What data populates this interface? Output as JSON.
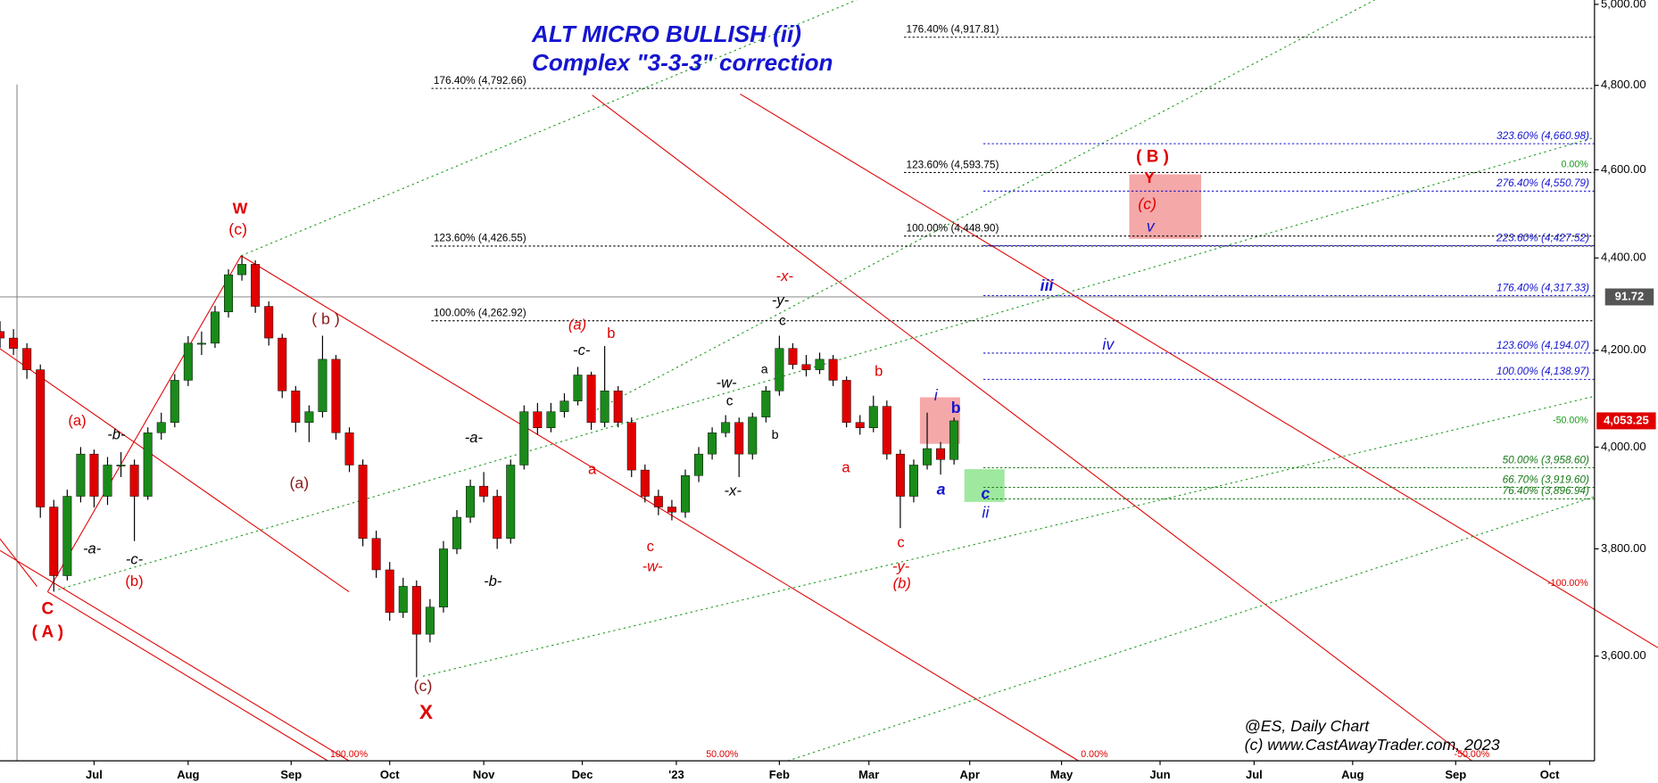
{
  "chart_data": {
    "type": "candlestick",
    "title": "ALT MICRO BULLISH (ii)",
    "subtitle": "Complex \"3-3-3\" correction",
    "log_scale": true,
    "up_color": "#1a8a1a",
    "down_color": "#e00000",
    "x": [
      0,
      3,
      6,
      9,
      12,
      15,
      18,
      21,
      24,
      27,
      30,
      33,
      36,
      39,
      42,
      45,
      48,
      51,
      54,
      57,
      60,
      63,
      66,
      69,
      72,
      75,
      78,
      81,
      84,
      87,
      90,
      93,
      96,
      99,
      102,
      105,
      108,
      111,
      114,
      117,
      120,
      123,
      126,
      129,
      132,
      135,
      138,
      141,
      144,
      147,
      150,
      153,
      156,
      159,
      162,
      165,
      168,
      171,
      174,
      177,
      180,
      183,
      186,
      189,
      192,
      195,
      198,
      201,
      204,
      207,
      210,
      213
    ],
    "open": [
      4240,
      4226,
      4204,
      4159,
      3881,
      3749,
      3902,
      3986,
      3902,
      3964,
      3964,
      3902,
      4029,
      4050,
      4137,
      4215,
      4215,
      4282,
      4363,
      4386,
      4294,
      4226,
      4115,
      4050,
      4072,
      4181,
      4029,
      3964,
      3820,
      3760,
      3680,
      3729,
      3640,
      3690,
      3800,
      3861,
      3922,
      3902,
      3820,
      3964,
      4072,
      4039,
      4072,
      4094,
      4148,
      4050,
      4115,
      4050,
      3954,
      3902,
      3881,
      3871,
      3943,
      3986,
      4029,
      4050,
      3986,
      4061,
      4115,
      4204,
      4170,
      4159,
      4181,
      4137,
      4050,
      4039,
      4083,
      3986,
      3902,
      3964,
      3997,
      3975
    ],
    "high": [
      4262,
      4245,
      4215,
      4170,
      3895,
      3915,
      4000,
      3995,
      3980,
      3990,
      3975,
      4040,
      4070,
      4150,
      4230,
      4240,
      4295,
      4375,
      4405,
      4395,
      4305,
      4235,
      4125,
      4085,
      4231,
      4190,
      4040,
      3975,
      3835,
      3775,
      3745,
      3740,
      3705,
      3815,
      3875,
      3935,
      3950,
      3915,
      3975,
      4085,
      4090,
      4090,
      4110,
      4165,
      4155,
      4209,
      4125,
      4060,
      3965,
      3915,
      3895,
      3955,
      4000,
      4040,
      4065,
      4060,
      4070,
      4125,
      4231,
      4215,
      4190,
      4195,
      4190,
      4145,
      4065,
      4105,
      4095,
      3995,
      3975,
      4070,
      4010,
      4060
    ],
    "low": [
      4205,
      4190,
      4140,
      3860,
      3719,
      3740,
      3890,
      3880,
      3885,
      3940,
      3815,
      3895,
      4015,
      4040,
      4125,
      4190,
      4205,
      4270,
      4350,
      4280,
      4210,
      4100,
      4030,
      4010,
      4060,
      4015,
      3950,
      3805,
      3745,
      3665,
      3670,
      3562,
      3625,
      3680,
      3790,
      3850,
      3890,
      3800,
      3810,
      3955,
      4025,
      4030,
      4060,
      4085,
      4035,
      4040,
      4040,
      3940,
      3890,
      3865,
      3855,
      3860,
      3930,
      3975,
      4020,
      3940,
      3975,
      4050,
      4105,
      4160,
      4145,
      4150,
      4125,
      4040,
      4025,
      4030,
      3975,
      3840,
      3890,
      3955,
      3945,
      3965
    ],
    "close": [
      4226,
      4204,
      4159,
      3881,
      3749,
      3902,
      3986,
      3902,
      3964,
      3964,
      3902,
      4029,
      4050,
      4137,
      4215,
      4215,
      4282,
      4363,
      4386,
      4294,
      4226,
      4115,
      4050,
      4072,
      4181,
      4029,
      3964,
      3820,
      3760,
      3680,
      3729,
      3640,
      3690,
      3800,
      3861,
      3922,
      3902,
      3820,
      3964,
      4072,
      4039,
      4072,
      4094,
      4148,
      4050,
      4115,
      4050,
      3954,
      3902,
      3881,
      3871,
      3943,
      3986,
      4029,
      4050,
      3986,
      4061,
      4115,
      4204,
      4170,
      4159,
      4181,
      4137,
      4050,
      4039,
      4083,
      3986,
      3902,
      3964,
      3997,
      3975,
      4053.25
    ],
    "last_price": {
      "value": 4053.25,
      "label": "4,053.25"
    },
    "cursor_label": "91.72",
    "xlim": [
      0,
      356
    ],
    "xticks": [
      {
        "value": 21,
        "label": "Jul"
      },
      {
        "value": 42,
        "label": "Aug"
      },
      {
        "value": 65,
        "label": "Sep"
      },
      {
        "value": 87,
        "label": "Oct"
      },
      {
        "value": 108,
        "label": "Nov"
      },
      {
        "value": 130,
        "label": "Dec"
      },
      {
        "value": 151,
        "label": "'23"
      },
      {
        "value": 174,
        "label": "Feb"
      },
      {
        "value": 194,
        "label": "Mar"
      },
      {
        "value": 216.5,
        "label": "Apr"
      },
      {
        "value": 237,
        "label": "May"
      },
      {
        "value": 259,
        "label": "Jun"
      },
      {
        "value": 280,
        "label": "Jul"
      },
      {
        "value": 302,
        "label": "Aug"
      },
      {
        "value": 325,
        "label": "Sep"
      },
      {
        "value": 346,
        "label": "Oct"
      }
    ],
    "ylim": [
      3415,
      5011
    ],
    "yticks": [
      {
        "value": 3600,
        "label": "3,600.00"
      },
      {
        "value": 3800,
        "label": "3,800.00"
      },
      {
        "value": 4000,
        "label": "4,000.00"
      },
      {
        "value": 4200,
        "label": "4,200.00"
      },
      {
        "value": 4400,
        "label": "4,400.00"
      },
      {
        "value": 4600,
        "label": "4,600.00"
      },
      {
        "value": 4800,
        "label": "4,800.00"
      },
      {
        "value": 5000,
        "label": "5,000.00"
      }
    ],
    "levels": [
      {
        "label": "176.40% (4,792.66)",
        "value": 4792.66,
        "color": "#000000"
      },
      {
        "label": "123.60% (4,426.55)",
        "value": 4426.55,
        "color": "#000000"
      },
      {
        "label": "100.00% (4,262.92)",
        "value": 4262.92,
        "color": "#000000"
      },
      {
        "label": "176.40% (4,917.81)",
        "value": 4917.81,
        "color": "#000000"
      },
      {
        "label": "123.60% (4,593.75)",
        "value": 4593.75,
        "color": "#000000"
      },
      {
        "label": "100.00% (4,448.90)",
        "value": 4448.9,
        "color": "#000000"
      },
      {
        "label": "323.60% (4,660.98)",
        "value": 4660.98,
        "color": "#1515d0"
      },
      {
        "label": "276.40% (4,550.79)",
        "value": 4550.79,
        "color": "#1515d0"
      },
      {
        "label": "223.60% (4,427.52)",
        "value": 4427.52,
        "color": "#1515d0"
      },
      {
        "label": "176.40% (4,317.33)",
        "value": 4317.33,
        "color": "#1515d0"
      },
      {
        "label": "123.60% (4,194.07)",
        "value": 4194.07,
        "color": "#1515d0"
      },
      {
        "label": "100.00% (4,138.97)",
        "value": 4138.97,
        "color": "#1515d0"
      },
      {
        "label": "50.00% (3,958.60)",
        "value": 3958.6,
        "color": "#1a7a1a"
      },
      {
        "label": "66.70% (3,919.60)",
        "value": 3919.6,
        "color": "#1a7a1a"
      },
      {
        "label": "76.40% (3,896.94)",
        "value": 3896.94,
        "color": "#1a7a1a"
      }
    ],
    "channel_labels": [
      "100.00%",
      "50.00%",
      "0.00%",
      "-50.00%",
      "-100.00%",
      "0.00%",
      "-50.00%"
    ],
    "annotations": [
      "W",
      "(c)",
      "( b )",
      "(a)",
      "(c)",
      "X",
      "C",
      "( A )",
      "(a)",
      "-b-",
      "-a-",
      "-c-",
      "(b)",
      "-a-",
      "-b-",
      "(a)",
      "b",
      "-c-",
      "a",
      "c",
      "-w-",
      "-w-",
      "c",
      "-x-",
      "-x-",
      "-y-",
      "c",
      "a",
      "b",
      "b",
      "a",
      "c",
      "-y-",
      "(b)",
      "i",
      "b",
      "a",
      "c",
      "ii",
      "iii",
      "iv",
      "( B )",
      "Y",
      "(c)",
      "v"
    ],
    "footer": [
      "@ES,  Daily Chart",
      "(c) www.CastAwayTrader.com, 2023"
    ]
  }
}
